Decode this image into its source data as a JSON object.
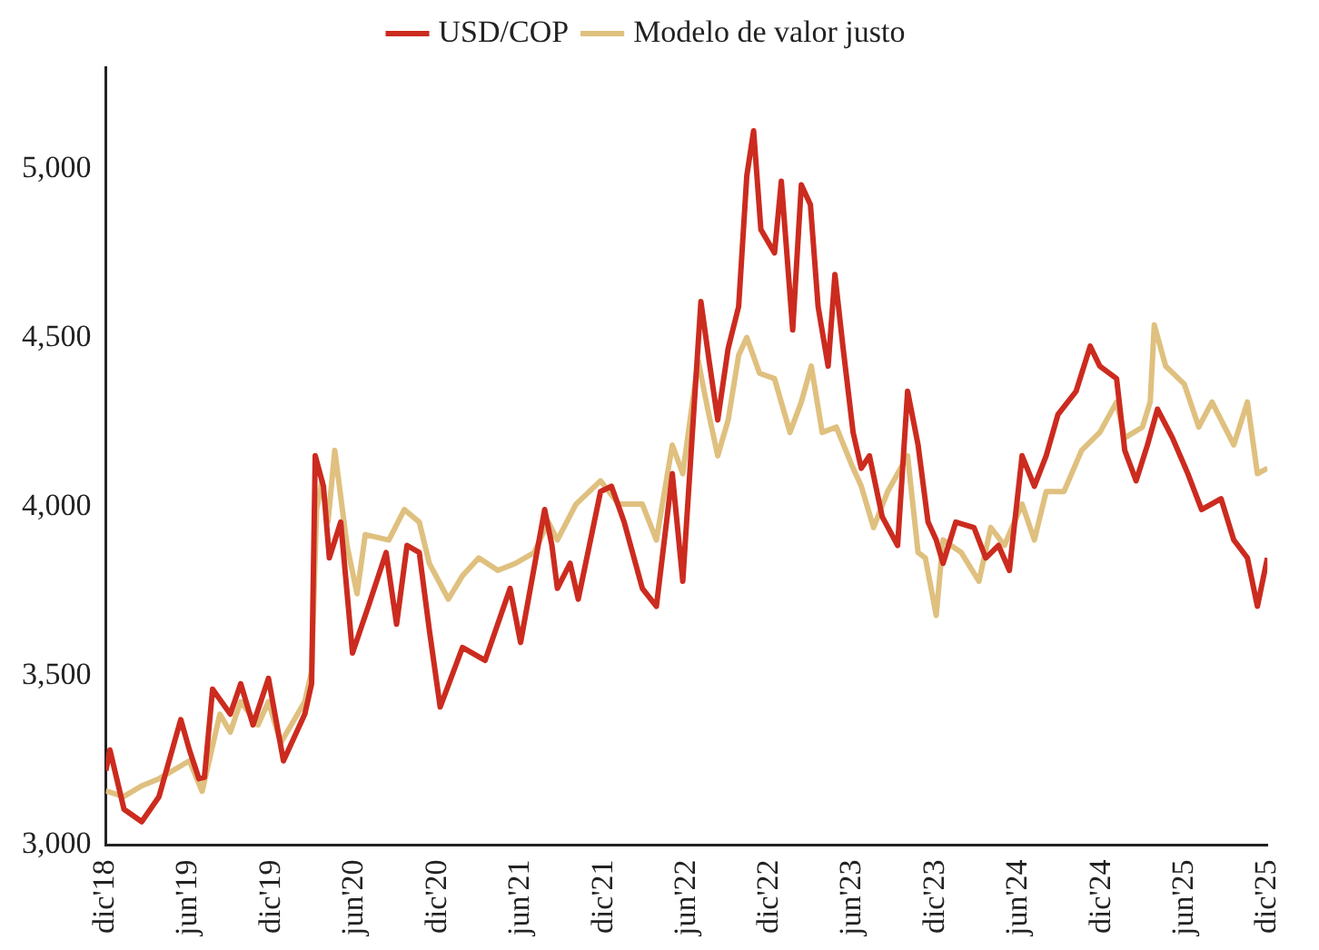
{
  "chart_data": {
    "type": "line",
    "legend": "top",
    "grid": false,
    "xlim": [
      "2018-12-01",
      "2025-12-01"
    ],
    "xticks": [
      {
        "value": "2018-12-01",
        "label": "dic'18"
      },
      {
        "value": "2019-06-01",
        "label": "jun'19"
      },
      {
        "value": "2019-12-01",
        "label": "dic'19"
      },
      {
        "value": "2020-06-01",
        "label": "jun'20"
      },
      {
        "value": "2020-12-01",
        "label": "dic'20"
      },
      {
        "value": "2021-06-01",
        "label": "jun'21"
      },
      {
        "value": "2021-12-01",
        "label": "dic'21"
      },
      {
        "value": "2022-06-01",
        "label": "jun'22"
      },
      {
        "value": "2022-12-01",
        "label": "dic'22"
      },
      {
        "value": "2023-06-01",
        "label": "jun'23"
      },
      {
        "value": "2023-12-01",
        "label": "dic'23"
      },
      {
        "value": "2024-06-01",
        "label": "jun'24"
      },
      {
        "value": "2024-12-01",
        "label": "dic'24"
      },
      {
        "value": "2025-06-01",
        "label": "jun'25"
      },
      {
        "value": "2025-12-01",
        "label": "dic'25"
      }
    ],
    "ylim": [
      3000,
      5300
    ],
    "yticks": [
      {
        "value": 3000,
        "label": "3,000"
      },
      {
        "value": 3500,
        "label": "3,500"
      },
      {
        "value": 4000,
        "label": "4,000"
      },
      {
        "value": 4500,
        "label": "4,500"
      },
      {
        "value": 5000,
        "label": "5,000"
      }
    ],
    "series": [
      {
        "name": "USD/COP",
        "color": "#cc2b1f",
        "x": [
          "2018-12-01",
          "2018-12-10",
          "2019-01-10",
          "2019-02-18",
          "2019-03-28",
          "2019-05-15",
          "2019-06-03",
          "2019-06-24",
          "2019-07-06",
          "2019-07-24",
          "2019-09-01",
          "2019-09-24",
          "2019-10-21",
          "2019-11-24",
          "2019-12-27",
          "2020-02-12",
          "2020-02-27",
          "2020-03-06",
          "2020-03-24",
          "2020-04-06",
          "2020-05-01",
          "2020-05-27",
          "2020-07-01",
          "2020-08-09",
          "2020-09-01",
          "2020-09-24",
          "2020-10-21",
          "2020-11-12",
          "2020-12-06",
          "2021-01-24",
          "2021-03-15",
          "2021-05-09",
          "2021-06-01",
          "2021-07-24",
          "2021-08-09",
          "2021-08-21",
          "2021-09-18",
          "2021-10-06",
          "2021-11-24",
          "2021-12-18",
          "2022-01-15",
          "2022-02-24",
          "2022-03-27",
          "2022-05-01",
          "2022-05-24",
          "2022-07-03",
          "2022-07-21",
          "2022-08-09",
          "2022-09-01",
          "2022-09-24",
          "2022-10-12",
          "2022-10-27",
          "2022-11-12",
          "2022-12-12",
          "2022-12-27",
          "2023-01-21",
          "2023-02-09",
          "2023-03-01",
          "2023-03-18",
          "2023-04-09",
          "2023-04-24",
          "2023-05-12",
          "2023-06-03",
          "2023-06-21",
          "2023-07-09",
          "2023-08-06",
          "2023-09-09",
          "2023-10-01",
          "2023-10-24",
          "2023-11-15",
          "2023-12-03",
          "2023-12-18",
          "2024-01-15",
          "2024-02-24",
          "2024-03-21",
          "2024-04-18",
          "2024-05-12",
          "2024-06-09",
          "2024-07-06",
          "2024-08-01",
          "2024-08-27",
          "2024-10-06",
          "2024-11-06",
          "2024-11-27",
          "2025-01-03",
          "2025-01-21",
          "2025-02-15",
          "2025-03-12",
          "2025-04-03",
          "2025-05-06",
          "2025-06-09",
          "2025-07-09",
          "2025-08-21",
          "2025-09-18",
          "2025-10-18",
          "2025-11-09",
          "2025-12-01"
        ],
        "values": [
          3220,
          3281,
          3106,
          3069,
          3143,
          3371,
          3281,
          3196,
          3200,
          3461,
          3387,
          3477,
          3355,
          3493,
          3249,
          3387,
          3477,
          4151,
          4061,
          3849,
          3955,
          3568,
          3706,
          3865,
          3653,
          3886,
          3865,
          3637,
          3408,
          3584,
          3546,
          3759,
          3599,
          3992,
          3886,
          3759,
          3833,
          3727,
          4045,
          4061,
          3955,
          3759,
          3706,
          4098,
          3780,
          4607,
          4432,
          4257,
          4469,
          4592,
          4979,
          5112,
          4820,
          4751,
          4963,
          4523,
          4952,
          4894,
          4592,
          4416,
          4687,
          4469,
          4220,
          4114,
          4151,
          3971,
          3886,
          4342,
          4183,
          3955,
          3902,
          3833,
          3955,
          3939,
          3849,
          3886,
          3812,
          4151,
          4061,
          4151,
          4273,
          4342,
          4475,
          4416,
          4379,
          4167,
          4077,
          4183,
          4289,
          4204,
          4098,
          3992,
          4024,
          3902,
          3849,
          3706,
          3849
        ]
      },
      {
        "name": "Modelo de valor justo",
        "color": "#dfc07f",
        "x": [
          "2018-12-01",
          "2019-01-09",
          "2019-02-18",
          "2019-03-28",
          "2019-06-03",
          "2019-07-01",
          "2019-08-09",
          "2019-09-01",
          "2019-09-24",
          "2019-11-01",
          "2019-11-24",
          "2019-12-21",
          "2020-02-12",
          "2020-02-27",
          "2020-03-09",
          "2020-03-21",
          "2020-04-03",
          "2020-04-18",
          "2020-05-15",
          "2020-06-06",
          "2020-06-24",
          "2020-08-15",
          "2020-09-18",
          "2020-10-21",
          "2020-11-12",
          "2020-12-24",
          "2021-01-24",
          "2021-03-01",
          "2021-04-12",
          "2021-05-21",
          "2021-07-01",
          "2021-08-01",
          "2021-08-21",
          "2021-10-01",
          "2021-11-24",
          "2022-01-03",
          "2022-02-24",
          "2022-03-27",
          "2022-05-01",
          "2022-05-24",
          "2022-06-27",
          "2022-07-18",
          "2022-08-09",
          "2022-09-01",
          "2022-09-24",
          "2022-10-12",
          "2022-11-09",
          "2022-12-12",
          "2023-01-15",
          "2023-02-09",
          "2023-03-03",
          "2023-03-27",
          "2023-04-27",
          "2023-06-03",
          "2023-06-21",
          "2023-07-18",
          "2023-08-18",
          "2023-10-01",
          "2023-10-24",
          "2023-11-09",
          "2023-12-03",
          "2023-12-18",
          "2024-01-27",
          "2024-03-06",
          "2024-04-01",
          "2024-05-01",
          "2024-06-09",
          "2024-07-06",
          "2024-08-01",
          "2024-09-09",
          "2024-10-18",
          "2024-11-27",
          "2025-01-03",
          "2025-01-21",
          "2025-03-01",
          "2025-03-18",
          "2025-03-27",
          "2025-04-21",
          "2025-06-01",
          "2025-07-03",
          "2025-08-01",
          "2025-09-18",
          "2025-10-18",
          "2025-11-09",
          "2025-12-01"
        ],
        "values": [
          3160,
          3143,
          3175,
          3196,
          3249,
          3159,
          3387,
          3334,
          3424,
          3355,
          3424,
          3302,
          3424,
          3514,
          3992,
          4077,
          3955,
          4167,
          3886,
          3743,
          3918,
          3902,
          3992,
          3955,
          3833,
          3727,
          3796,
          3849,
          3812,
          3833,
          3865,
          3955,
          3902,
          4008,
          4077,
          4008,
          4008,
          3902,
          4183,
          4098,
          4432,
          4289,
          4151,
          4257,
          4448,
          4501,
          4395,
          4379,
          4220,
          4310,
          4416,
          4220,
          4236,
          4114,
          4061,
          3939,
          4045,
          4151,
          3865,
          3849,
          3679,
          3902,
          3865,
          3780,
          3939,
          3886,
          4008,
          3902,
          4045,
          4045,
          4167,
          4220,
          4310,
          4204,
          4236,
          4310,
          4538,
          4416,
          4363,
          4236,
          4310,
          4183,
          4310,
          4098,
          4114
        ]
      }
    ]
  }
}
